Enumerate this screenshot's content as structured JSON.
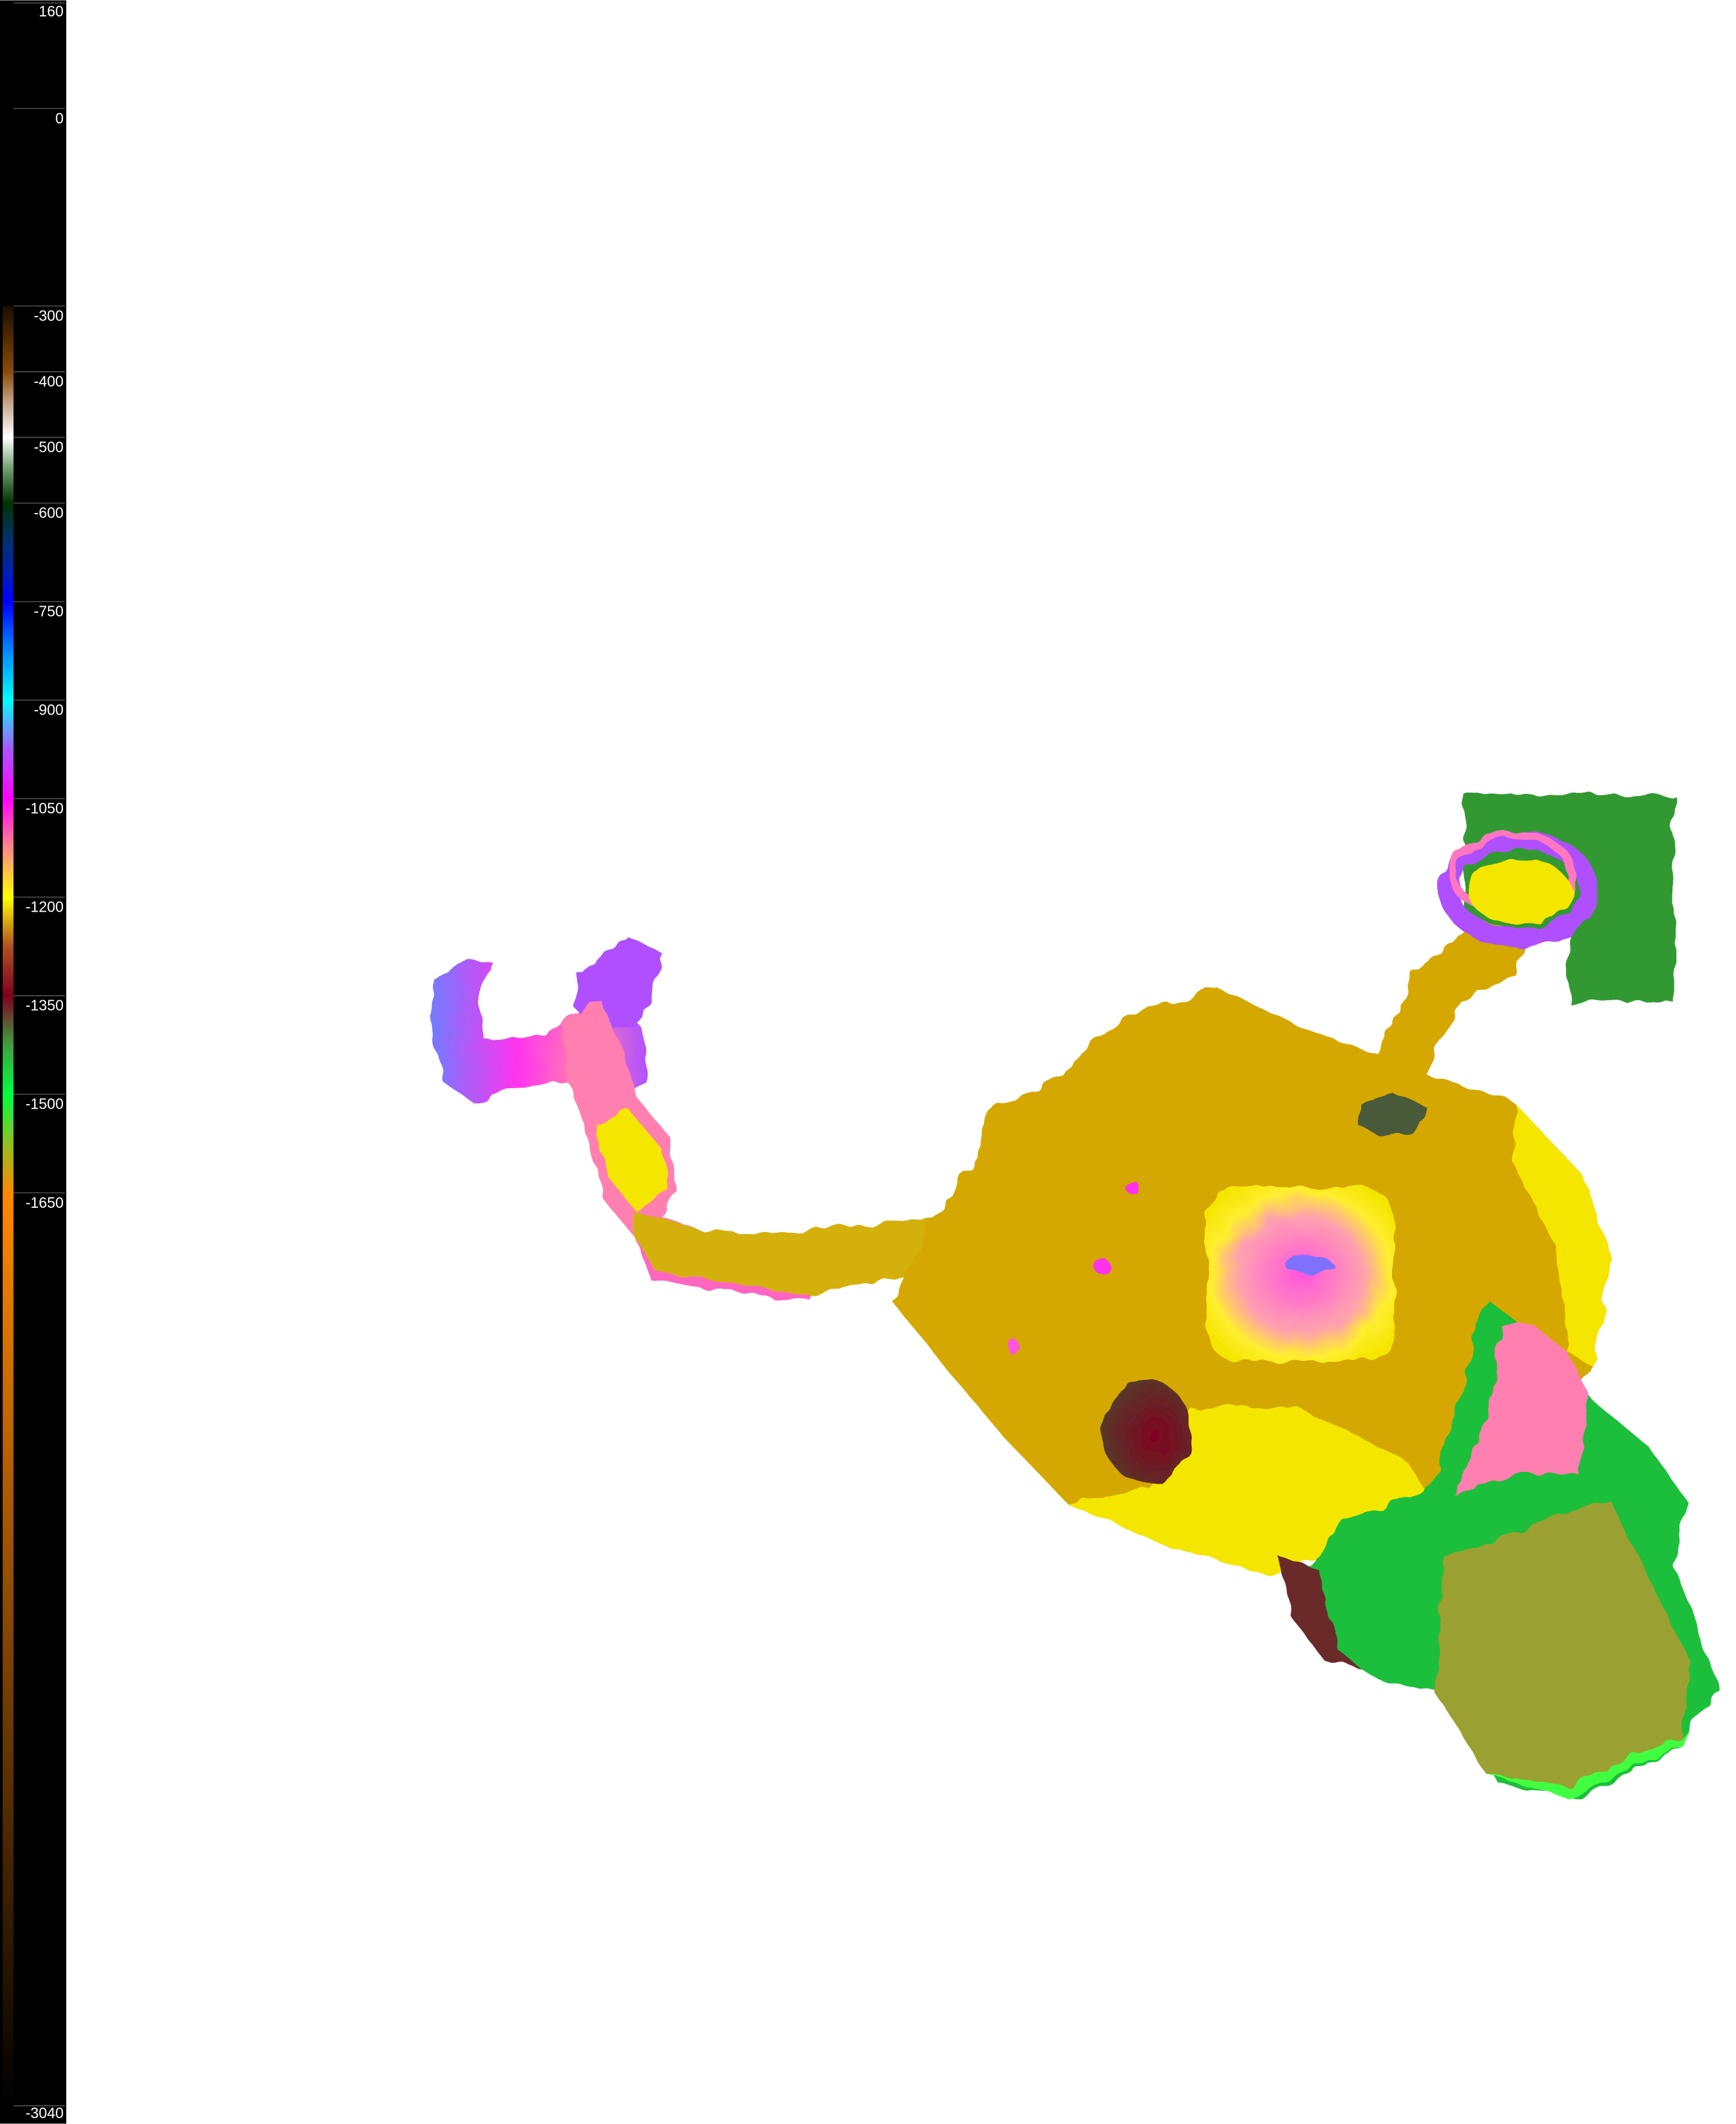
{
  "legend": {
    "ticks": [
      {
        "value": 160,
        "label": "160"
      },
      {
        "value": 0,
        "label": "0"
      },
      {
        "value": -300,
        "label": "-300"
      },
      {
        "value": -400,
        "label": "-400"
      },
      {
        "value": -500,
        "label": "-500"
      },
      {
        "value": -600,
        "label": "-600"
      },
      {
        "value": -750,
        "label": "-750"
      },
      {
        "value": -900,
        "label": "-900"
      },
      {
        "value": -1050,
        "label": "-1050"
      },
      {
        "value": -1200,
        "label": "-1200"
      },
      {
        "value": -1350,
        "label": "-1350"
      },
      {
        "value": -1500,
        "label": "-1500"
      },
      {
        "value": -1650,
        "label": "-1650"
      },
      {
        "value": -3040,
        "label": "-3040"
      }
    ],
    "color_scale": [
      {
        "value": -300,
        "color": "#1a0e00"
      },
      {
        "value": -400,
        "color": "#8a4a08"
      },
      {
        "value": -450,
        "color": "#c8a890"
      },
      {
        "value": -500,
        "color": "#ffffff"
      },
      {
        "value": -550,
        "color": "#6a9a6a"
      },
      {
        "value": -600,
        "color": "#003300"
      },
      {
        "value": -650,
        "color": "#003366"
      },
      {
        "value": -700,
        "color": "#0022aa"
      },
      {
        "value": -750,
        "color": "#0000ff"
      },
      {
        "value": -825,
        "color": "#0088ff"
      },
      {
        "value": -900,
        "color": "#00ffff"
      },
      {
        "value": -975,
        "color": "#aa55ff"
      },
      {
        "value": -1050,
        "color": "#ff00ff"
      },
      {
        "value": -1125,
        "color": "#ff8888"
      },
      {
        "value": -1200,
        "color": "#ffff00"
      },
      {
        "value": -1275,
        "color": "#b05020"
      },
      {
        "value": -1350,
        "color": "#800020"
      },
      {
        "value": -1425,
        "color": "#40a040"
      },
      {
        "value": -1500,
        "color": "#00ff40"
      },
      {
        "value": -1575,
        "color": "#90c020"
      },
      {
        "value": -1650,
        "color": "#ff8800"
      },
      {
        "value": -3040,
        "color": "#000000"
      }
    ]
  },
  "map": {
    "colors": {
      "gold": "#d4a800",
      "yellow": "#f5e600",
      "pink": "#ff7fb0",
      "magenta": "#ff33ee",
      "purple": "#a855ff",
      "blue": "#6f7cff",
      "green": "#1fbf3a",
      "olive": "#9aa030",
      "dark_red": "#7a1428",
      "box_green": "#339933"
    }
  }
}
